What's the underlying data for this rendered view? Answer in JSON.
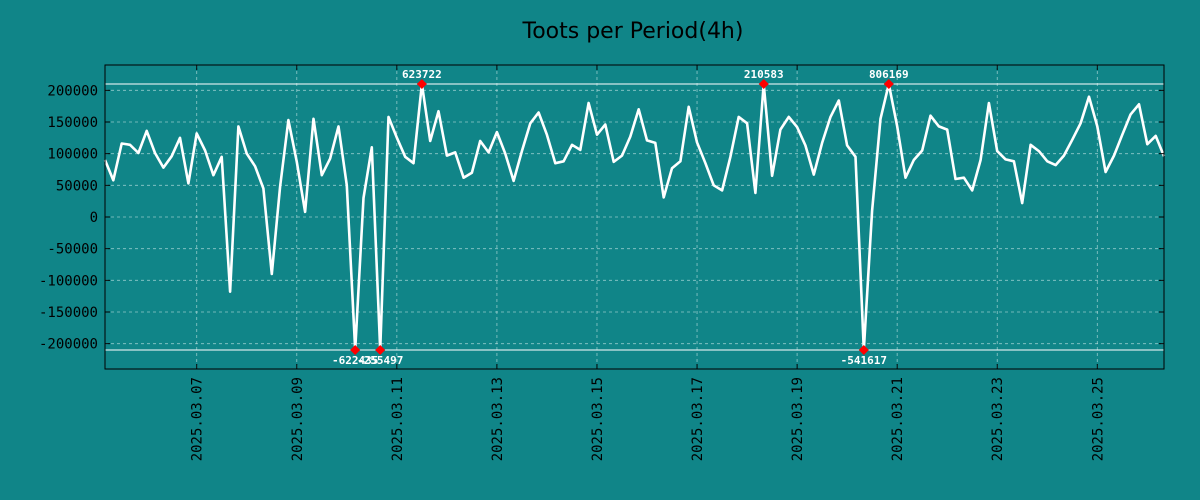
{
  "colors": {
    "background": "#108588",
    "line": "#ffffff",
    "grid": "#c8e6e6",
    "marker": "#ff0000",
    "axis": "#000000"
  },
  "chart_data": {
    "type": "line",
    "title": "Toots per Period(4h)",
    "xlabel": "",
    "ylabel": "",
    "grid": true,
    "x_index_range": [
      0,
      127
    ],
    "ylim": [
      -240000,
      240000
    ],
    "y_ticks": [
      200000,
      150000,
      100000,
      50000,
      0,
      -50000,
      -100000,
      -150000,
      -200000
    ],
    "y_tick_labels": [
      "200000",
      "150000",
      "100000",
      "50000",
      "0",
      "-50000",
      "-100000",
      "-150000",
      "-200000"
    ],
    "x_ticks": [
      {
        "index": 11,
        "label": "2025.03.07"
      },
      {
        "index": 23,
        "label": "2025.03.09"
      },
      {
        "index": 35,
        "label": "2025.03.11"
      },
      {
        "index": 47,
        "label": "2025.03.13"
      },
      {
        "index": 59,
        "label": "2025.03.15"
      },
      {
        "index": 71,
        "label": "2025.03.17"
      },
      {
        "index": 83,
        "label": "2025.03.19"
      },
      {
        "index": 95,
        "label": "2025.03.21"
      },
      {
        "index": 107,
        "label": "2025.03.23"
      },
      {
        "index": 119,
        "label": "2025.03.25"
      }
    ],
    "clip_lines": [
      210000,
      -210000
    ],
    "series": [
      {
        "name": "toots",
        "values": [
          90000,
          58000,
          116000,
          114000,
          101000,
          136000,
          101000,
          78000,
          96000,
          125000,
          53000,
          132000,
          105000,
          66000,
          95000,
          -118000,
          143000,
          100000,
          80000,
          45000,
          -90000,
          48000,
          153000,
          87000,
          8000,
          155000,
          66000,
          92000,
          143000,
          50000,
          -210000,
          30000,
          110000,
          -210000,
          158000,
          125000,
          95000,
          85000,
          210000,
          120000,
          167000,
          97000,
          102000,
          62000,
          70000,
          120000,
          102000,
          134000,
          100000,
          57000,
          104000,
          148000,
          165000,
          130000,
          85000,
          88000,
          114000,
          106000,
          180000,
          130000,
          146000,
          87000,
          97000,
          127000,
          170000,
          121000,
          117000,
          31000,
          77000,
          88000,
          174000,
          118000,
          85000,
          50000,
          42000,
          95000,
          158000,
          148000,
          38000,
          210000,
          65000,
          138000,
          158000,
          142000,
          113000,
          67000,
          117000,
          158000,
          184000,
          113000,
          95000,
          -210000,
          10000,
          155000,
          210000,
          143000,
          62000,
          90000,
          105000,
          160000,
          143000,
          138000,
          60000,
          62000,
          42000,
          90000,
          180000,
          104000,
          91000,
          88000,
          22000,
          114000,
          104000,
          88000,
          82000,
          97000,
          122000,
          148000,
          190000,
          143000,
          71000,
          97000,
          130000,
          162000,
          178000,
          115000,
          128000,
          96000
        ]
      }
    ],
    "annotations": [
      {
        "index": 30,
        "value": -210000,
        "label": "-622435",
        "position": "below"
      },
      {
        "index": 33,
        "value": -210000,
        "label": "-255497",
        "position": "below"
      },
      {
        "index": 38,
        "value": 210000,
        "label": "623722",
        "position": "above"
      },
      {
        "index": 79,
        "value": 210000,
        "label": "210583",
        "position": "above"
      },
      {
        "index": 91,
        "value": -210000,
        "label": "-541617",
        "position": "below"
      },
      {
        "index": 94,
        "value": 210000,
        "label": "806169",
        "position": "above"
      }
    ]
  }
}
